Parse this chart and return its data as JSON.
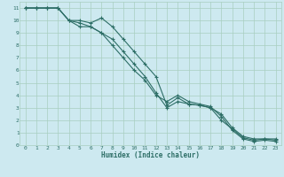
{
  "xlabel": "Humidex (Indice chaleur)",
  "xlim": [
    -0.5,
    23.5
  ],
  "ylim": [
    0,
    11.5
  ],
  "xticks": [
    0,
    1,
    2,
    3,
    4,
    5,
    6,
    7,
    8,
    9,
    10,
    11,
    12,
    13,
    14,
    15,
    16,
    17,
    18,
    19,
    20,
    21,
    22,
    23
  ],
  "yticks": [
    0,
    1,
    2,
    3,
    4,
    5,
    6,
    7,
    8,
    9,
    10,
    11
  ],
  "bg_color": "#cde9f0",
  "grid_color": "#a8cfc0",
  "line_color": "#2d6e66",
  "line1_x": [
    0,
    1,
    2,
    3,
    4,
    5,
    6,
    7,
    8,
    9,
    10,
    11,
    12,
    13,
    14,
    15,
    16,
    17,
    18,
    19,
    20,
    21,
    22,
    23
  ],
  "line1_y": [
    11,
    11,
    11,
    11,
    10,
    10,
    9.8,
    10.2,
    9.5,
    8.5,
    7.5,
    6.5,
    5.5,
    3.2,
    3.8,
    3.3,
    3.2,
    3.0,
    2.5,
    1.4,
    0.7,
    0.5,
    0.5,
    0.5
  ],
  "line2_x": [
    0,
    1,
    2,
    3,
    4,
    5,
    6,
    7,
    8,
    9,
    10,
    11,
    12,
    13,
    14,
    15,
    16,
    17,
    18,
    19,
    20,
    21,
    22,
    23
  ],
  "line2_y": [
    11,
    11,
    11,
    11,
    10,
    9.5,
    9.5,
    9.0,
    8.5,
    7.5,
    6.5,
    5.5,
    4.2,
    3.0,
    3.5,
    3.3,
    3.2,
    3.0,
    2.0,
    1.3,
    0.6,
    0.4,
    0.5,
    0.4
  ],
  "line3_x": [
    0,
    1,
    2,
    3,
    4,
    5,
    6,
    7,
    8,
    9,
    10,
    11,
    12,
    13,
    14,
    15,
    16,
    17,
    18,
    19,
    20,
    21,
    22,
    23
  ],
  "line3_y": [
    11,
    11,
    11,
    11,
    10,
    9.8,
    9.5,
    9.0,
    8.0,
    7.0,
    6.0,
    5.2,
    4.0,
    3.5,
    4.0,
    3.5,
    3.3,
    3.1,
    2.3,
    1.2,
    0.5,
    0.3,
    0.4,
    0.3
  ]
}
